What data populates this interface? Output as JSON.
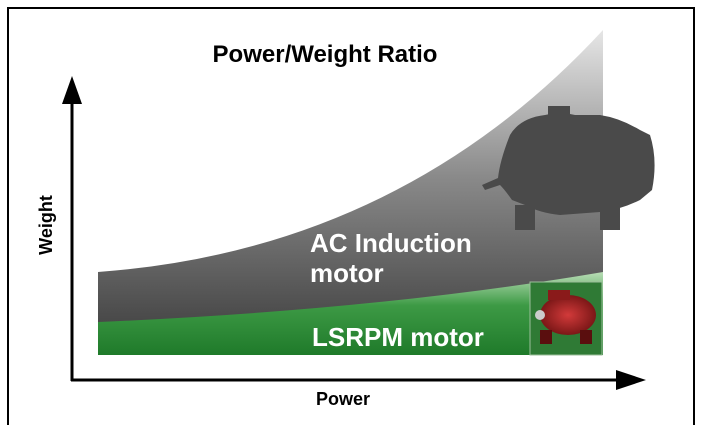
{
  "diagram": {
    "title": "Power/Weight Ratio",
    "y_axis_label": "Weight",
    "x_axis_label": "Power",
    "regions": [
      {
        "label_lines": [
          "AC Induction",
          "motor"
        ]
      },
      {
        "label_lines": [
          "LSRPM motor"
        ]
      }
    ]
  }
}
